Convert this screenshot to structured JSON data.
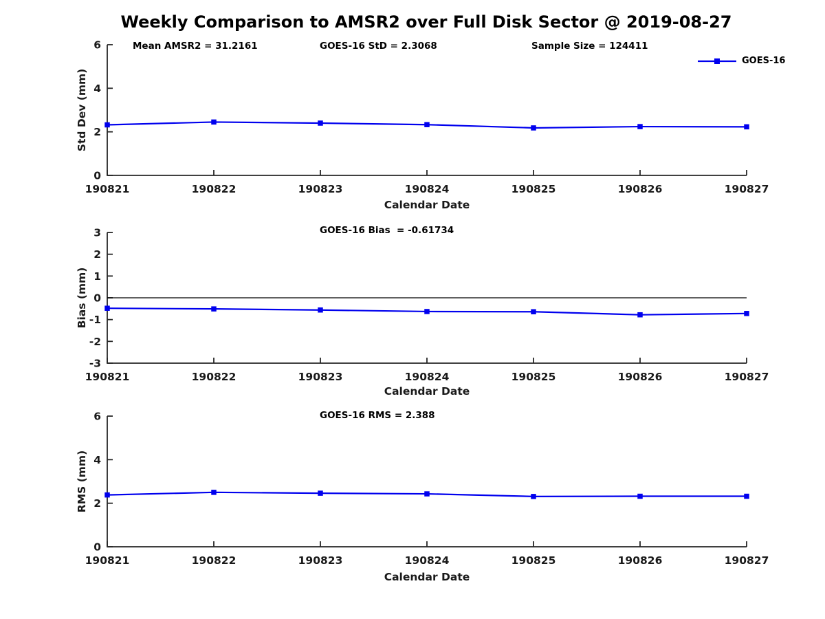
{
  "figure_title": "Weekly Comparison to AMSR2 over Full Disk Sector @ 2019-08-27",
  "legend": {
    "label": "GOES-16"
  },
  "colors": {
    "series": "#0000EE",
    "axis": "#262626",
    "tick_text": "#1a1a1a",
    "zero_line": "#000000"
  },
  "chart_data": [
    {
      "type": "line",
      "name": "std-dev-vs-date",
      "annotations": [
        "Mean AMSR2 = 31.2161",
        "GOES-16 StD = 2.3068",
        "Sample Size = 124411"
      ],
      "categories": [
        "190821",
        "190822",
        "190823",
        "190824",
        "190825",
        "190826",
        "190827"
      ],
      "series": [
        {
          "name": "GOES-16",
          "values": [
            2.32,
            2.45,
            2.4,
            2.33,
            2.18,
            2.24,
            2.23
          ]
        }
      ],
      "xlabel": "Calendar Date",
      "ylabel": "Std Dev (mm)",
      "ylim": [
        0,
        6
      ],
      "yticks": [
        0,
        2,
        4,
        6
      ],
      "grid": false,
      "zero_line": false,
      "legend_position": "top-right"
    },
    {
      "type": "line",
      "name": "bias-vs-date",
      "annotations": [
        "GOES-16 Bias  = -0.61734"
      ],
      "categories": [
        "190821",
        "190822",
        "190823",
        "190824",
        "190825",
        "190826",
        "190827"
      ],
      "series": [
        {
          "name": "GOES-16",
          "values": [
            -0.48,
            -0.51,
            -0.56,
            -0.63,
            -0.64,
            -0.78,
            -0.72
          ]
        }
      ],
      "xlabel": "Calendar Date",
      "ylabel": "Bias (mm)",
      "ylim": [
        -3,
        3
      ],
      "yticks": [
        -3,
        -2,
        -1,
        0,
        1,
        2,
        3
      ],
      "grid": false,
      "zero_line": true,
      "legend_position": "none"
    },
    {
      "type": "line",
      "name": "rms-vs-date",
      "annotations": [
        "GOES-16 RMS = 2.388"
      ],
      "categories": [
        "190821",
        "190822",
        "190823",
        "190824",
        "190825",
        "190826",
        "190827"
      ],
      "series": [
        {
          "name": "GOES-16",
          "values": [
            2.38,
            2.5,
            2.46,
            2.43,
            2.31,
            2.32,
            2.32
          ]
        }
      ],
      "xlabel": "Calendar Date",
      "ylabel": "RMS (mm)",
      "ylim": [
        0,
        6
      ],
      "yticks": [
        0,
        2,
        4,
        6
      ],
      "grid": false,
      "zero_line": false,
      "legend_position": "none"
    }
  ]
}
